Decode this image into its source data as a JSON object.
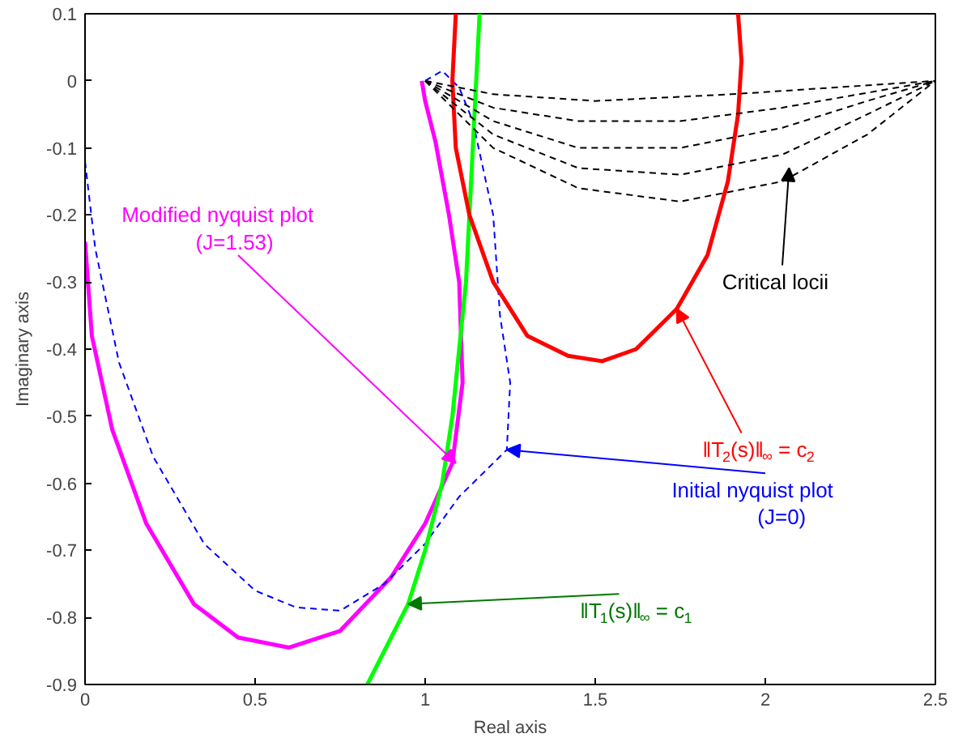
{
  "chart_data": {
    "type": "line",
    "xlabel": "Real axis",
    "ylabel": "Imaginary axis",
    "xlim": [
      0,
      2.5
    ],
    "ylim": [
      -0.9,
      0.1
    ],
    "xticks": [
      0,
      0.5,
      1,
      1.5,
      2,
      2.5
    ],
    "yticks": [
      -0.9,
      -0.8,
      -0.7,
      -0.6,
      -0.5,
      -0.4,
      -0.3,
      -0.2,
      -0.1,
      0,
      0.1
    ],
    "grid": false,
    "series": [
      {
        "color": "#ff00ff",
        "line_style": "solid",
        "x": [
          0,
          0.02,
          0.08,
          0.18,
          0.32,
          0.45,
          0.6,
          0.75,
          0.9,
          1.0,
          1.08,
          1.11,
          1.1,
          1.07,
          1.03,
          1.0,
          0.99
        ],
        "values": [
          -0.24,
          -0.38,
          -0.52,
          -0.66,
          -0.78,
          -0.83,
          -0.845,
          -0.82,
          -0.74,
          -0.66,
          -0.57,
          -0.45,
          -0.3,
          -0.2,
          -0.09,
          -0.03,
          0.0
        ]
      },
      {
        "color": "#0000ff",
        "line_style": "dashed",
        "x": [
          0,
          0.03,
          0.1,
          0.2,
          0.35,
          0.5,
          0.62,
          0.75,
          0.88,
          1.0,
          1.1,
          1.24,
          1.25,
          1.22,
          1.2,
          1.14,
          1.1,
          1.05,
          1.0
        ],
        "values": [
          -0.12,
          -0.25,
          -0.42,
          -0.56,
          -0.69,
          -0.76,
          -0.785,
          -0.79,
          -0.75,
          -0.69,
          -0.62,
          -0.55,
          -0.45,
          -0.35,
          -0.2,
          -0.06,
          -0.01,
          0.015,
          0.0
        ]
      },
      {
        "color": "#00ff00",
        "line_style": "solid",
        "x": [
          0.83,
          0.95,
          1.0,
          1.05,
          1.08,
          1.1,
          1.12,
          1.13,
          1.14,
          1.15,
          1.16
        ],
        "values": [
          -0.9,
          -0.78,
          -0.7,
          -0.6,
          -0.5,
          -0.4,
          -0.3,
          -0.2,
          -0.1,
          0.0,
          0.1
        ]
      },
      {
        "color": "#ff0000",
        "line_style": "solid",
        "x": [
          1.09,
          1.08,
          1.09,
          1.13,
          1.2,
          1.3,
          1.42,
          1.52,
          1.62,
          1.74,
          1.83,
          1.89,
          1.92,
          1.93,
          1.92
        ],
        "values": [
          0.1,
          0.0,
          -0.1,
          -0.2,
          -0.3,
          -0.38,
          -0.41,
          -0.418,
          -0.4,
          -0.34,
          -0.26,
          -0.15,
          -0.05,
          0.03,
          0.1
        ]
      },
      {
        "color": "#000000",
        "line_style": "dashed",
        "x": [
          1,
          1.2,
          1.45,
          1.75,
          2.05,
          2.3,
          2.5
        ],
        "values": [
          0,
          -0.1,
          -0.16,
          -0.18,
          -0.15,
          -0.08,
          0
        ]
      },
      {
        "color": "#000000",
        "line_style": "dashed",
        "x": [
          1,
          1.2,
          1.45,
          1.75,
          2.05,
          2.3,
          2.5
        ],
        "values": [
          0,
          -0.08,
          -0.13,
          -0.14,
          -0.11,
          -0.05,
          0
        ]
      },
      {
        "color": "#000000",
        "line_style": "dashed",
        "x": [
          1,
          1.2,
          1.45,
          1.75,
          2.05,
          2.3,
          2.5
        ],
        "values": [
          0,
          -0.06,
          -0.1,
          -0.1,
          -0.07,
          -0.03,
          0
        ]
      },
      {
        "color": "#000000",
        "line_style": "dashed",
        "x": [
          1,
          1.2,
          1.45,
          1.75,
          2.05,
          2.5
        ],
        "values": [
          0,
          -0.04,
          -0.06,
          -0.06,
          -0.04,
          0
        ]
      },
      {
        "color": "#000000",
        "line_style": "dashed",
        "x": [
          1,
          1.2,
          1.5,
          1.9,
          2.5
        ],
        "values": [
          0,
          -0.02,
          -0.03,
          -0.02,
          0
        ]
      }
    ],
    "annotations": [
      {
        "text": "Modified nyquist plot\n(J=1.53)",
        "x": 1.09,
        "y": -0.57
      },
      {
        "text": "Critical locii",
        "x": 2.07,
        "y": -0.13
      },
      {
        "text": "‖T$_{2}$(s)‖$_{∞}$ = c$_{2}$",
        "x": 1.74,
        "y": -0.34
      },
      {
        "text": "Initial nyquist plot\n(J=0)",
        "x": 1.24,
        "y": -0.55
      },
      {
        "text": "‖T$_{1}$(s)‖$_{∞}$ = c$_{1}$",
        "x": 0.95,
        "y": -0.78
      }
    ]
  }
}
